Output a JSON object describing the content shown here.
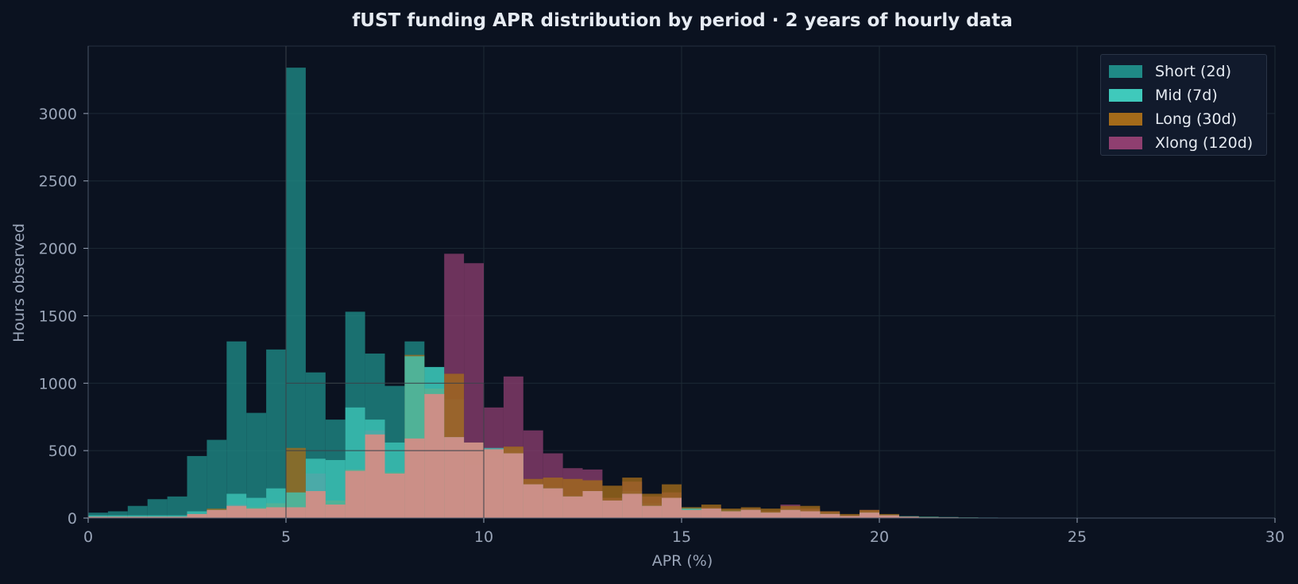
{
  "chart_data": {
    "type": "bar",
    "title": "fUST funding APR distribution by period · 2 years of hourly data",
    "xlabel": "APR (%)",
    "ylabel": "Hours observed",
    "xlim": [
      0,
      30
    ],
    "ylim": [
      0,
      3500
    ],
    "bin_width": 0.5,
    "x_ticks": [
      0,
      5,
      10,
      15,
      20,
      25,
      30
    ],
    "y_ticks": [
      0,
      500,
      1000,
      1500,
      2000,
      2500,
      3000
    ],
    "grid": true,
    "legend_position": "top-right",
    "bin_starts": [
      0,
      0.5,
      1,
      1.5,
      2,
      2.5,
      3,
      3.5,
      4,
      4.5,
      5,
      5.5,
      6,
      6.5,
      7,
      7.5,
      8,
      8.5,
      9,
      9.5,
      10,
      10.5,
      11,
      11.5,
      12,
      12.5,
      13,
      13.5,
      14,
      14.5,
      15,
      15.5,
      16,
      16.5,
      17,
      17.5,
      18,
      18.5,
      19,
      19.5,
      20,
      20.5,
      21,
      21.5,
      22,
      22.5,
      23,
      23.5,
      24,
      24.5,
      25,
      25.5,
      26,
      26.5,
      27,
      27.5,
      28,
      28.5,
      29,
      29.5
    ],
    "series": [
      {
        "name": "Short (2d)",
        "color": "#1f8a86",
        "values": [
          40,
          50,
          90,
          140,
          160,
          460,
          580,
          1310,
          780,
          1250,
          3340,
          1080,
          730,
          1530,
          1220,
          980,
          1310,
          1120,
          880,
          400,
          450,
          520,
          250,
          160,
          140,
          140,
          120,
          200,
          110,
          150,
          80,
          70,
          60,
          70,
          50,
          70,
          60,
          40,
          20,
          50,
          25,
          15,
          10,
          8,
          5,
          4,
          3,
          3,
          2,
          2,
          2,
          2,
          1,
          1,
          1,
          1,
          1,
          1,
          1,
          1
        ]
      },
      {
        "name": "Mid (7d)",
        "color": "#3fc9bb",
        "values": [
          20,
          20,
          20,
          20,
          20,
          50,
          60,
          180,
          150,
          220,
          190,
          440,
          430,
          820,
          730,
          560,
          1200,
          1120,
          600,
          560,
          520,
          480,
          250,
          220,
          160,
          200,
          130,
          180,
          90,
          150,
          70,
          70,
          50,
          60,
          40,
          60,
          50,
          30,
          15,
          40,
          20,
          10,
          8,
          6,
          4,
          3,
          2,
          2,
          1,
          1,
          1,
          1,
          1,
          1,
          0,
          0,
          0,
          0,
          0,
          0
        ]
      },
      {
        "name": "Long (30d)",
        "color": "#a46b1a",
        "values": [
          10,
          10,
          10,
          10,
          10,
          30,
          70,
          90,
          80,
          110,
          520,
          200,
          130,
          360,
          620,
          340,
          1210,
          960,
          1070,
          560,
          510,
          530,
          290,
          300,
          290,
          280,
          240,
          300,
          180,
          250,
          80,
          100,
          70,
          80,
          70,
          90,
          90,
          50,
          30,
          60,
          30,
          10,
          8,
          6,
          4,
          3,
          2,
          2,
          1,
          1,
          1,
          1,
          1,
          0,
          0,
          0,
          0,
          0,
          0,
          0
        ]
      },
      {
        "name": "Xlong (120d)",
        "color": "#8f3f70",
        "values": [
          0,
          0,
          0,
          0,
          0,
          0,
          0,
          100,
          70,
          80,
          80,
          330,
          100,
          350,
          650,
          330,
          590,
          920,
          1960,
          1890,
          820,
          1050,
          650,
          480,
          370,
          360,
          150,
          270,
          160,
          190,
          60,
          80,
          50,
          70,
          50,
          100,
          70,
          50,
          20,
          60,
          20,
          10,
          5,
          5,
          3,
          2,
          1,
          1,
          1,
          1,
          0,
          0,
          0,
          0,
          0,
          0,
          0,
          0,
          0,
          0
        ]
      }
    ]
  }
}
